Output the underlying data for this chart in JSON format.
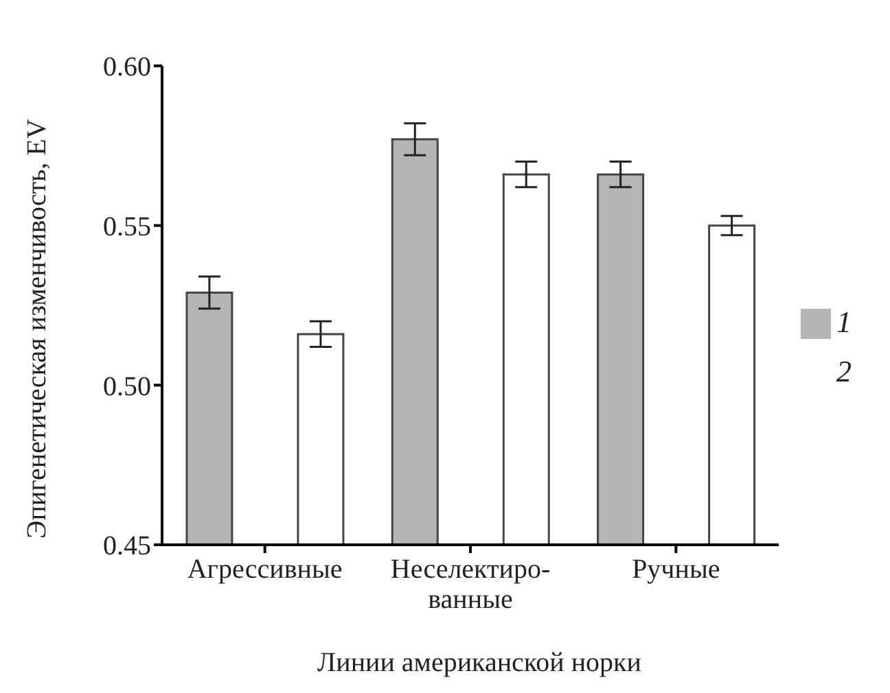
{
  "chart_data": {
    "type": "bar",
    "xlabel": "Линии американской норки",
    "ylabel": "Эпигенетическая изменчивость, EV",
    "categories": [
      "Агрессивные",
      "Неселектиро-\nванные",
      "Ручные"
    ],
    "series": [
      {
        "name": "1",
        "color": "#b5b5b5",
        "values": [
          0.529,
          0.577,
          0.566
        ],
        "errors": [
          0.005,
          0.005,
          0.004
        ]
      },
      {
        "name": "2",
        "color": "#ffffff",
        "values": [
          0.516,
          0.566,
          0.55
        ],
        "errors": [
          0.004,
          0.004,
          0.003
        ]
      }
    ],
    "ylim": [
      0.45,
      0.6
    ],
    "yticks": [
      {
        "value": 0.45,
        "label": "0.45"
      },
      {
        "value": 0.5,
        "label": "0.50"
      },
      {
        "value": 0.55,
        "label": "0.55"
      },
      {
        "value": 0.6,
        "label": "0.60"
      }
    ],
    "grid": false,
    "legend": "right"
  }
}
